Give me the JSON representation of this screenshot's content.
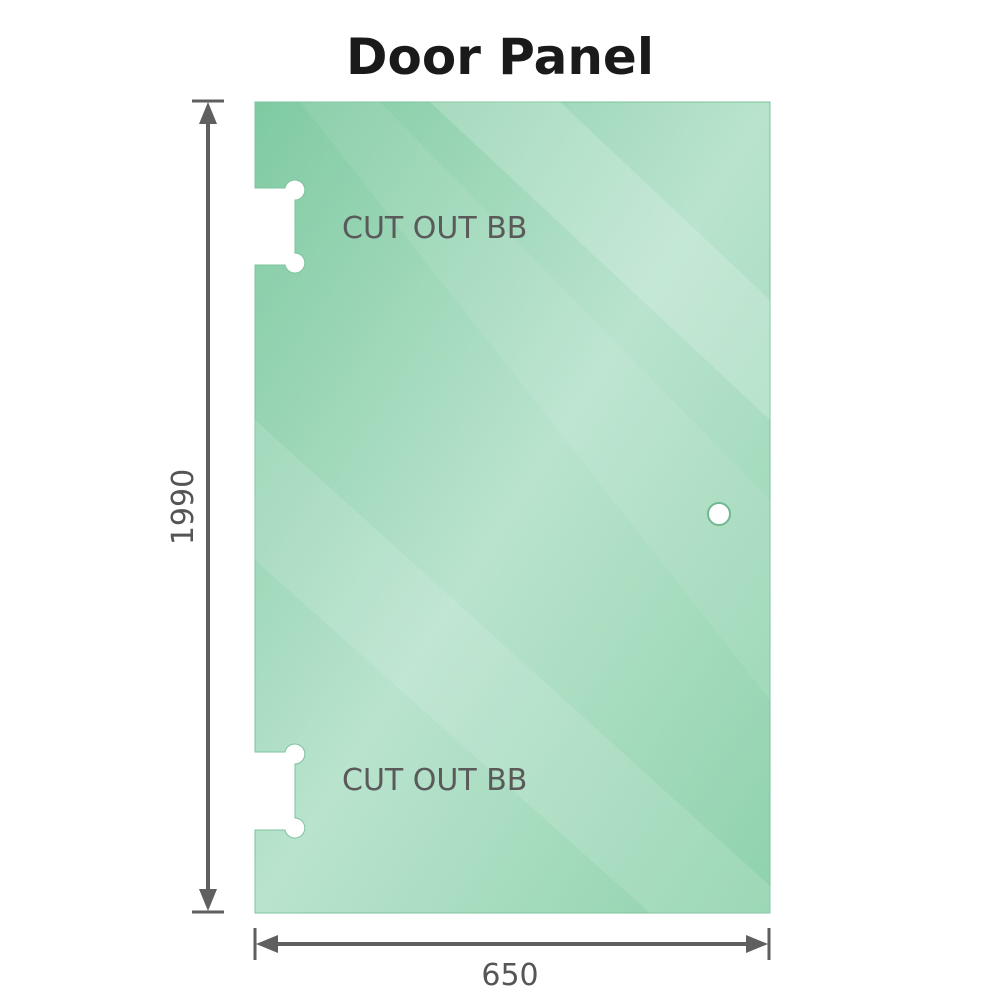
{
  "title": "Door Panel",
  "cutouts": [
    {
      "label": "CUT OUT BB"
    },
    {
      "label": "CUT OUT BB"
    }
  ],
  "dimensions": {
    "height": "1990",
    "width": "650"
  },
  "colors": {
    "glass": "#86cfa8",
    "glass_light": "#bfe6d2",
    "dimension_line": "#5f5f5f"
  }
}
